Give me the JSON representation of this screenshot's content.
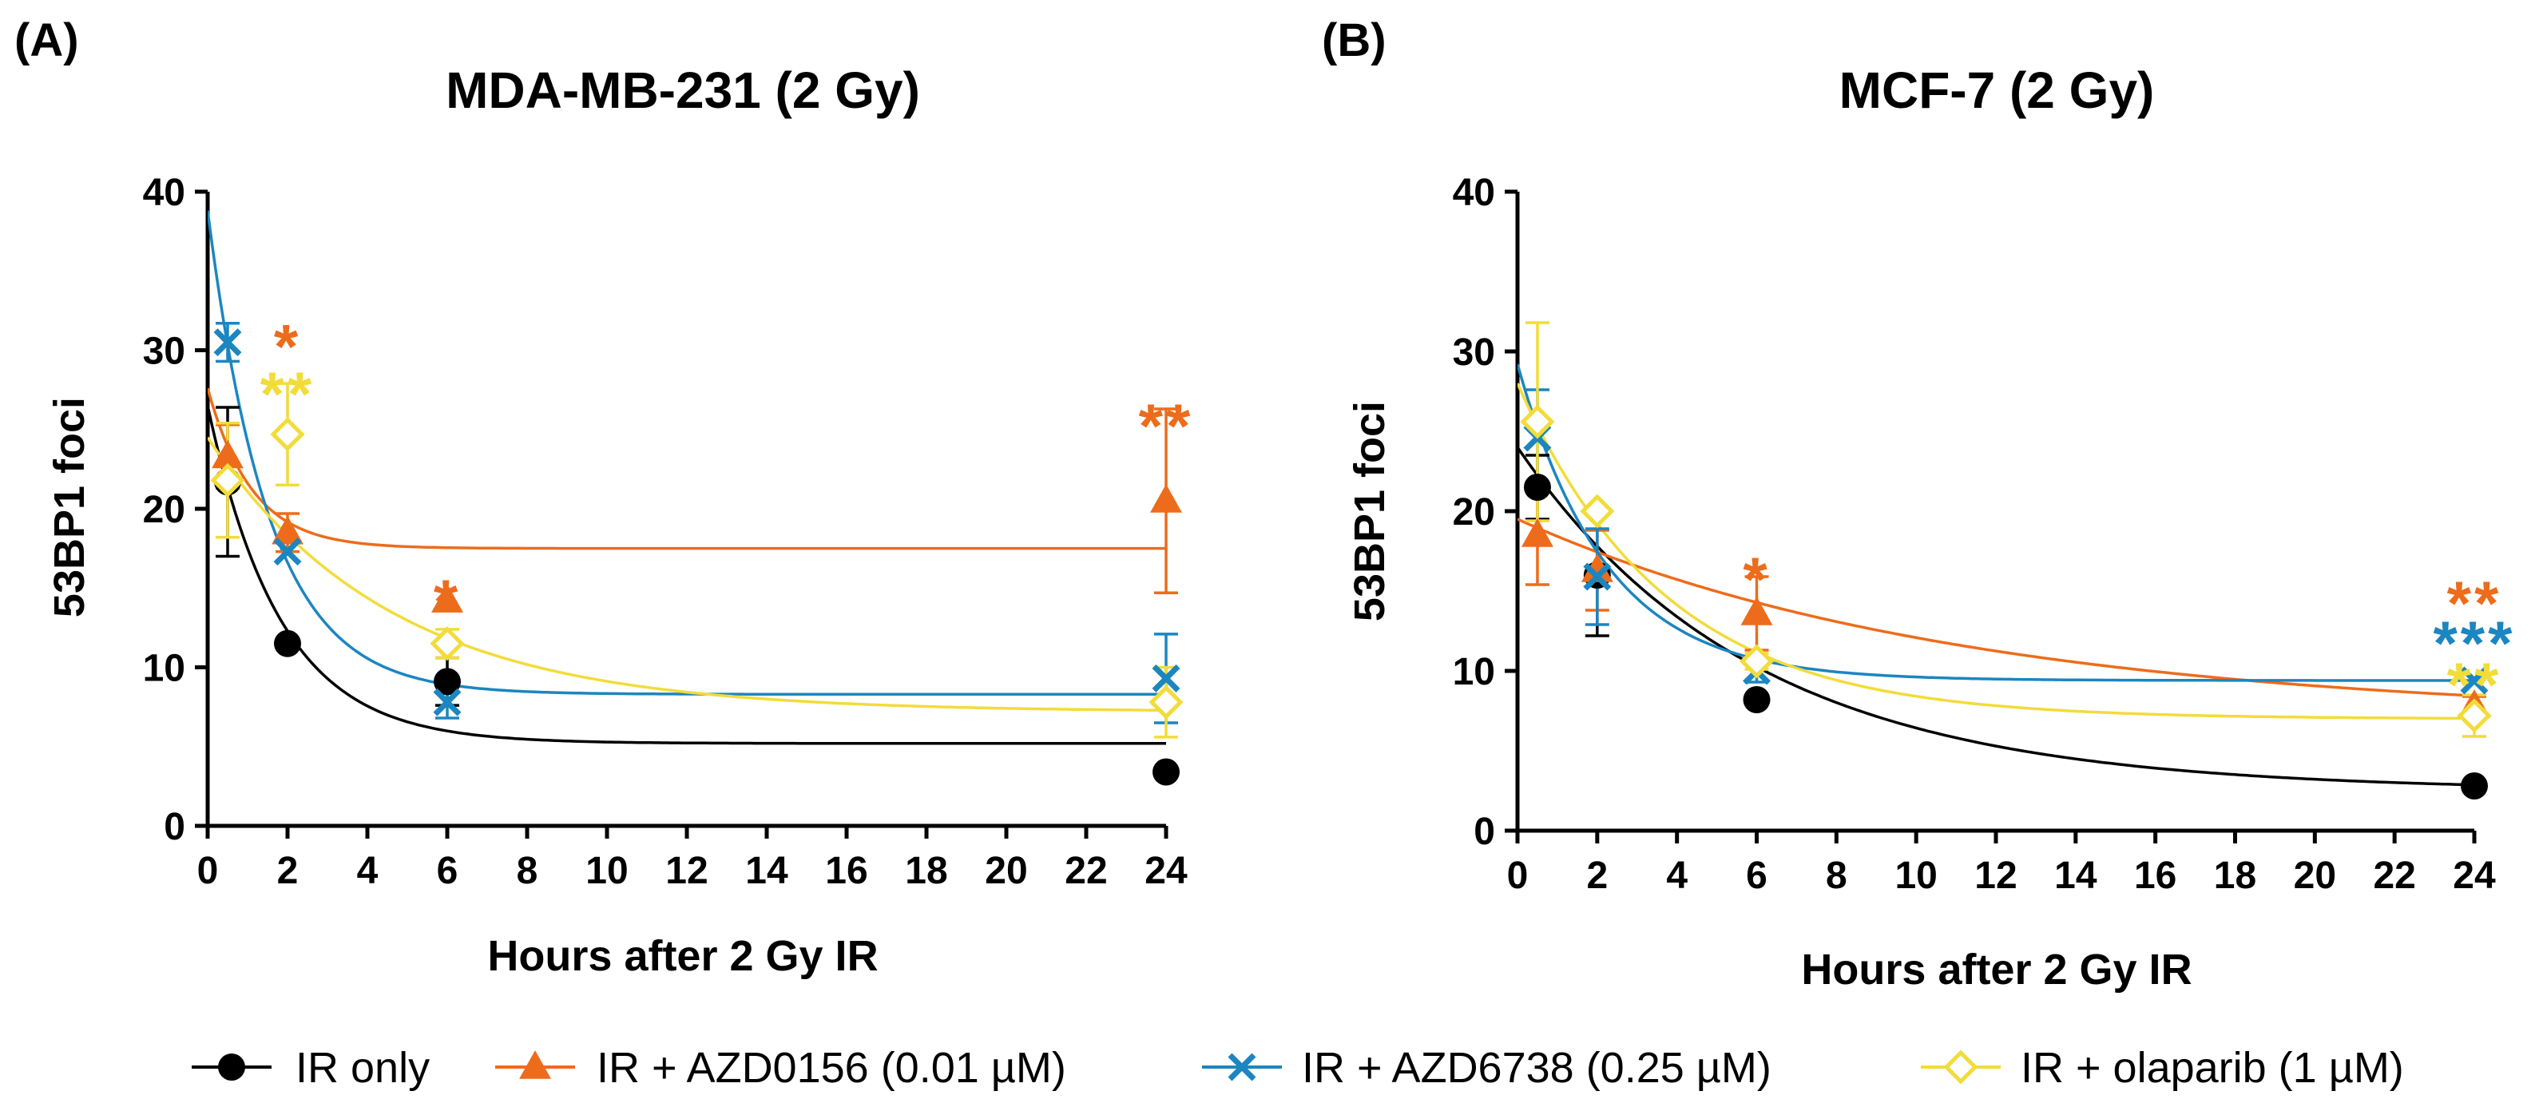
{
  "chart_data": [
    {
      "type": "line",
      "panel_label": "(A)",
      "title": "MDA-MB-231 (2 Gy)",
      "xlabel": "Hours after 2 Gy IR",
      "ylabel": "53BP1 foci",
      "xlim": [
        0,
        24
      ],
      "ylim": [
        0,
        40
      ],
      "xticks": [
        "0",
        "2",
        "4",
        "6",
        "8",
        "10",
        "12",
        "14",
        "16",
        "18",
        "20",
        "22",
        "24"
      ],
      "yticks": [
        "0",
        "10",
        "20",
        "30",
        "40"
      ],
      "x": [
        0.5,
        2,
        6,
        24
      ],
      "series": [
        {
          "name": "IR only",
          "values": [
            21.7,
            11.5,
            9.1,
            3.4
          ],
          "errors": [
            4.7,
            0,
            1.5,
            0
          ],
          "fit": {
            "y0": 26.5,
            "plateau": 5.2,
            "k": 0.55
          }
        },
        {
          "name": "IR + AZD0156 (0.01 µM)",
          "values": [
            23.3,
            18.5,
            14.2,
            20.5
          ],
          "errors": [
            2.0,
            1.2,
            0,
            5.8
          ],
          "fit": {
            "y0": 27.6,
            "plateau": 17.5,
            "k": 0.9
          }
        },
        {
          "name": "IR + AZD6738 (0.25 µM)",
          "values": [
            30.5,
            17.3,
            7.8,
            9.3
          ],
          "errors": [
            1.2,
            0,
            1.0,
            2.8
          ],
          "fit": {
            "y0": 38.8,
            "plateau": 8.3,
            "k": 0.65
          }
        },
        {
          "name": "IR + olaparib (1 µM)",
          "values": [
            21.8,
            24.7,
            11.5,
            7.8
          ],
          "errors": [
            3.6,
            3.2,
            0.9,
            2.2
          ],
          "fit": {
            "y0": 24.5,
            "plateau": 7.2,
            "k": 0.22
          }
        }
      ],
      "annotations": [
        {
          "x": 2,
          "y": 30.8,
          "text": "*",
          "color": "#ed6c1c"
        },
        {
          "x": 2,
          "y": 27.8,
          "text": "**",
          "color": "#f2dc3a"
        },
        {
          "x": 6,
          "y": 14.7,
          "text": "*",
          "color": "#ed6c1c"
        },
        {
          "x": 24,
          "y": 25.8,
          "text": "**",
          "color": "#ed6c1c"
        }
      ]
    },
    {
      "type": "line",
      "panel_label": "(B)",
      "title": "MCF-7 (2 Gy)",
      "xlabel": "Hours after 2 Gy IR",
      "ylabel": "53BP1 foci",
      "xlim": [
        0,
        24
      ],
      "ylim": [
        0,
        40
      ],
      "xticks": [
        "0",
        "2",
        "4",
        "6",
        "8",
        "10",
        "12",
        "14",
        "16",
        "18",
        "20",
        "22",
        "24"
      ],
      "yticks": [
        "0",
        "10",
        "20",
        "30",
        "40"
      ],
      "x": [
        0.5,
        2,
        6,
        24
      ],
      "series": [
        {
          "name": "IR only",
          "values": [
            21.5,
            16.0,
            8.2,
            2.8
          ],
          "errors": [
            2.0,
            3.8,
            0,
            0
          ],
          "fit": {
            "y0": 24.0,
            "plateau": 2.5,
            "k": 0.17
          }
        },
        {
          "name": "IR + AZD0156 (0.01 µM)",
          "values": [
            18.5,
            16.3,
            13.6,
            7.8
          ],
          "errors": [
            3.1,
            2.5,
            2.3,
            0.6
          ],
          "fit": {
            "y0": 19.5,
            "plateau": 7.0,
            "k": 0.09
          }
        },
        {
          "name": "IR + AZD6738 (0.25 µM)",
          "values": [
            24.6,
            15.9,
            10.0,
            9.4
          ],
          "errors": [
            3.0,
            3.0,
            0.7,
            0
          ],
          "fit": {
            "y0": 29.2,
            "plateau": 9.4,
            "k": 0.45
          }
        },
        {
          "name": "IR + olaparib (1 µM)",
          "values": [
            25.6,
            20.0,
            10.6,
            7.2
          ],
          "errors": [
            6.2,
            0,
            0.5,
            1.3
          ],
          "fit": {
            "y0": 28.0,
            "plateau": 7.0,
            "k": 0.27
          }
        }
      ],
      "annotations": [
        {
          "x": 6,
          "y": 16.3,
          "text": "*",
          "color": "#ed6c1c"
        },
        {
          "x": 24,
          "y": 14.8,
          "text": "**",
          "color": "#ed6c1c"
        },
        {
          "x": 24,
          "y": 12.3,
          "text": "***",
          "color": "#1b86c0"
        },
        {
          "x": 24,
          "y": 9.7,
          "text": "**",
          "color": "#f2dc3a"
        }
      ]
    }
  ],
  "legend": {
    "position": "bottom-center",
    "items": [
      {
        "label": "IR only",
        "marker": "circle",
        "color": "#000000"
      },
      {
        "label": "IR + AZD0156 (0.01 µM)",
        "marker": "triangle",
        "color": "#ed6c1c"
      },
      {
        "label": "IR + AZD6738 (0.25 µM)",
        "marker": "cross",
        "color": "#1b86c0"
      },
      {
        "label": "IR + olaparib (1 µM)",
        "marker": "diamond",
        "color": "#f2dc3a"
      }
    ]
  },
  "colors": {
    "ir_only": "#000000",
    "azd0156": "#ed6c1c",
    "azd6738": "#1b86c0",
    "olaparib": "#f2dc3a"
  }
}
